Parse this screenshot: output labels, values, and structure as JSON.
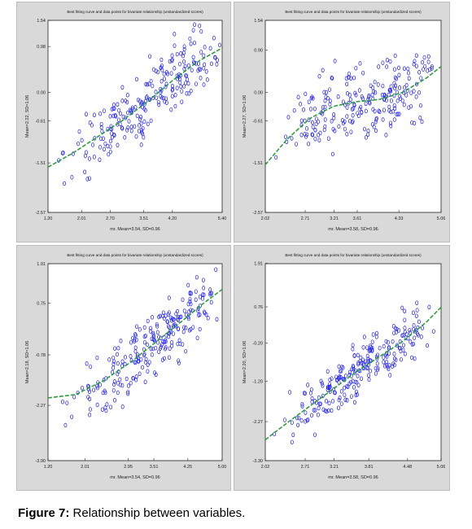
{
  "caption": {
    "label": "Figure 7:",
    "text": "Relationship between variables."
  },
  "colors": {
    "points": "#1a1aff",
    "curve": "#2e9e3e",
    "axis": "#222222",
    "plot_bg": "#ffffff",
    "panel_bg": "#d9d9d9"
  },
  "chart_data": [
    {
      "type": "scatter",
      "title": "Best fitting curve and data points for bivariate relationship (unstandardized scores)",
      "xlabel": "mr. Mean=3.54, SD=0.96",
      "ylabel": "Mean=2.22, SD=1.06",
      "xlim": [
        1.2,
        5.4
      ],
      "ylim": [
        -2.57,
        1.54
      ],
      "xticks": [
        "1.20",
        "2.01",
        "2.70",
        "3.51",
        "4.20",
        "5.40"
      ],
      "yticks": [
        "1.54",
        "0.98",
        "0.00",
        "-0.61",
        "-1.51",
        "-2.57"
      ],
      "curve": {
        "x": [
          1.2,
          1.8,
          2.4,
          3.0,
          3.6,
          4.2,
          4.8,
          5.4
        ],
        "y": [
          -1.6,
          -1.3,
          -0.95,
          -0.6,
          -0.2,
          0.25,
          0.65,
          0.95
        ]
      },
      "seed": 11,
      "noise": 0.55,
      "n": 230
    },
    {
      "type": "scatter",
      "title": "Best fitting curve and data points for bivariate relationship (unstandardized scores)",
      "xlabel": "mr. Mean=3.58, SD=0.96",
      "ylabel": "Mean=2.27, SD=1.06",
      "xlim": [
        2.02,
        5.06
      ],
      "ylim": [
        -2.57,
        1.54
      ],
      "xticks": [
        "2.02",
        "2.71",
        "3.21",
        "3.61",
        "4.33",
        "5.06"
      ],
      "yticks": [
        "1.54",
        "0.90",
        "0.00",
        "-0.61",
        "-1.51",
        "-2.57"
      ],
      "curve": {
        "x": [
          2.02,
          2.4,
          2.8,
          3.2,
          3.6,
          4.0,
          4.4,
          4.8,
          5.06
        ],
        "y": [
          -1.55,
          -1.0,
          -0.55,
          -0.3,
          -0.2,
          -0.15,
          0.0,
          0.3,
          0.55
        ]
      },
      "seed": 23,
      "noise": 0.6,
      "n": 230
    },
    {
      "type": "scatter",
      "title": "Best fitting curve and data points for bivariate relationship (unstandardized scores)",
      "xlabel": "mr. Mean=3.54, SD=0.96",
      "ylabel": "Mean=2.18, SD=1.06",
      "xlim": [
        1.2,
        5.0
      ],
      "ylim": [
        -3.9,
        1.91
      ],
      "xticks": [
        "1.20",
        "2.01",
        "2.95",
        "3.51",
        "4.25",
        "5.00"
      ],
      "yticks": [
        "1.91",
        "0.75",
        "-0.78",
        "-2.27",
        "-3.90"
      ],
      "curve": {
        "x": [
          1.2,
          1.8,
          2.4,
          3.0,
          3.6,
          4.2,
          4.6,
          5.0
        ],
        "y": [
          -2.05,
          -1.95,
          -1.55,
          -1.0,
          -0.35,
          0.3,
          0.75,
          1.15
        ]
      },
      "seed": 37,
      "noise": 0.7,
      "n": 240
    },
    {
      "type": "scatter",
      "title": "Best fitting curve and data points for bivariate relationship (unstandardized scores)",
      "xlabel": "mr. Mean=3.58, SD=0.96",
      "ylabel": "Mean=2.20, SD=1.06",
      "xlim": [
        2.02,
        5.06
      ],
      "ylim": [
        -3.3,
        1.9
      ],
      "xticks": [
        "2.02",
        "2.71",
        "3.21",
        "3.81",
        "4.48",
        "5.06"
      ],
      "yticks": [
        "1.91",
        "0.76",
        "-0.20",
        "-1.20",
        "-2.27",
        "-3.30"
      ],
      "curve": {
        "x": [
          2.02,
          2.4,
          2.8,
          3.2,
          3.6,
          4.0,
          4.4,
          4.8,
          5.06
        ],
        "y": [
          -2.75,
          -2.3,
          -1.85,
          -1.4,
          -0.95,
          -0.55,
          -0.15,
          0.35,
          0.75
        ]
      },
      "seed": 53,
      "noise": 0.55,
      "n": 240
    }
  ]
}
